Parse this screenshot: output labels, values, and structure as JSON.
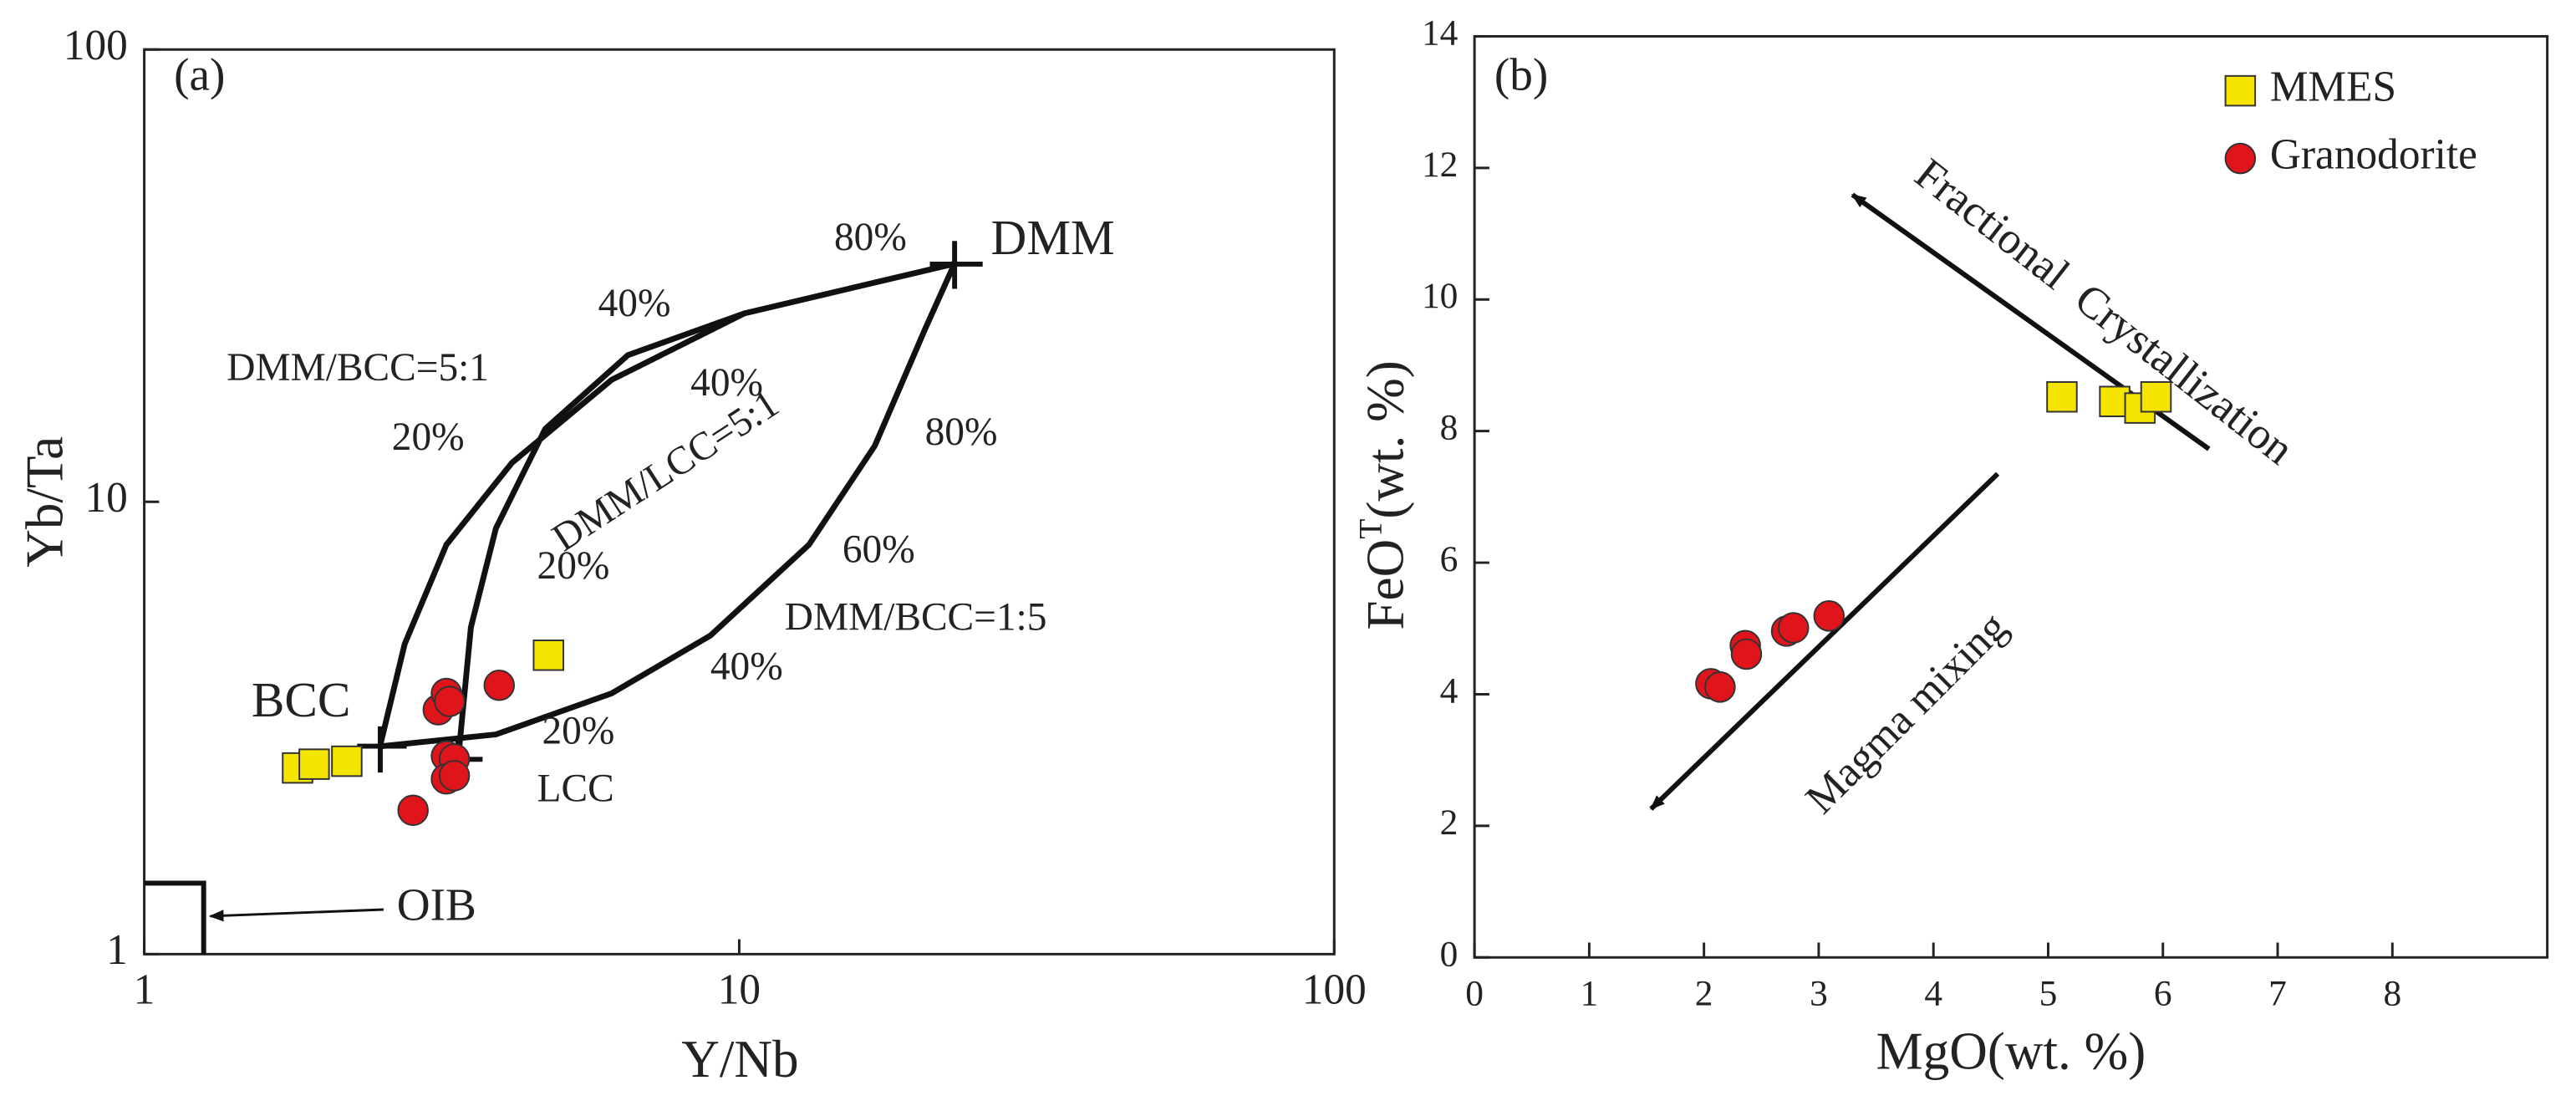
{
  "chart_data": [
    {
      "type": "scatter",
      "xscale": "log",
      "yscale": "log",
      "xlabel": "Y/Nb",
      "ylabel": "Yb/Ta",
      "xlim": [
        1,
        100
      ],
      "ylim": [
        1,
        100
      ],
      "xticks": [
        1,
        10,
        100
      ],
      "yticks": [
        1,
        10,
        100
      ],
      "series": [
        {
          "marker": "square",
          "color": "#f5e400",
          "x": [
            1.81,
            1.93,
            2.19,
            4.78
          ],
          "values": [
            2.58,
            2.63,
            2.67,
            4.58
          ]
        },
        {
          "marker": "circle",
          "color": "#e0141b",
          "x": [
            2.83,
            3.12,
            3.22,
            3.26,
            3.22,
            3.32,
            3.22,
            3.32,
            3.95
          ],
          "values": [
            2.08,
            3.47,
            3.77,
            3.62,
            2.74,
            2.7,
            2.44,
            2.48,
            3.93
          ]
        }
      ],
      "curves": [
        {
          "x": [
            2.49,
            2.74,
            3.22,
            4.15,
            6.1,
            10.2,
            14.0,
            23.0
          ],
          "values": [
            2.88,
            4.85,
            8.04,
            12.2,
            18.6,
            26.1,
            28.8,
            33.6
          ]
        },
        {
          "x": [
            3.37,
            3.54,
            3.9,
            4.72,
            6.5,
            10.2
          ],
          "values": [
            2.7,
            5.28,
            8.74,
            14.5,
            21.1,
            26.1
          ]
        },
        {
          "x": [
            2.49,
            3.9,
            6.1,
            8.94,
            13.1,
            16.9,
            20.5,
            23.0
          ],
          "values": [
            2.88,
            3.06,
            3.77,
            5.06,
            8.04,
            13.3,
            24.0,
            33.6
          ]
        }
      ],
      "annotations": [
        "(a)",
        "DMM",
        "BCC",
        "LCC",
        "OIB",
        "DMM/BCC=5:1",
        "DMM/LCC=5:1",
        "DMM/BCC=1:5",
        "80%",
        "40%",
        "40%",
        "20%",
        "20%",
        "80%",
        "60%",
        "40%",
        "20%"
      ]
    },
    {
      "type": "scatter",
      "xlabel": "MgO(wt. %)",
      "ylabel": {
        "base": "FeO",
        "sup": "T",
        "rest": "(wt. %)"
      },
      "xlim": [
        0,
        9.35
      ],
      "ylim": [
        0,
        14
      ],
      "xticks": [
        0,
        1,
        2,
        3,
        4,
        5,
        6,
        7,
        8
      ],
      "yticks": [
        0,
        2,
        4,
        6,
        8,
        10,
        12,
        14
      ],
      "legend_loc": "upper right",
      "series": [
        {
          "name": "MMES",
          "marker": "square",
          "color": "#f5e400",
          "x": [
            5.12,
            5.58,
            5.8,
            5.94
          ],
          "values": [
            8.52,
            8.45,
            8.35,
            8.52
          ]
        },
        {
          "name": "Granodorite",
          "marker": "circle",
          "color": "#e0141b",
          "x": [
            2.06,
            2.14,
            2.36,
            2.37,
            2.72,
            2.78,
            3.09
          ],
          "values": [
            4.16,
            4.11,
            4.74,
            4.61,
            4.96,
            5.01,
            5.19
          ]
        }
      ],
      "annotations": [
        "(b)",
        "Fractional  Crystallization",
        "Magma mixing"
      ]
    }
  ]
}
